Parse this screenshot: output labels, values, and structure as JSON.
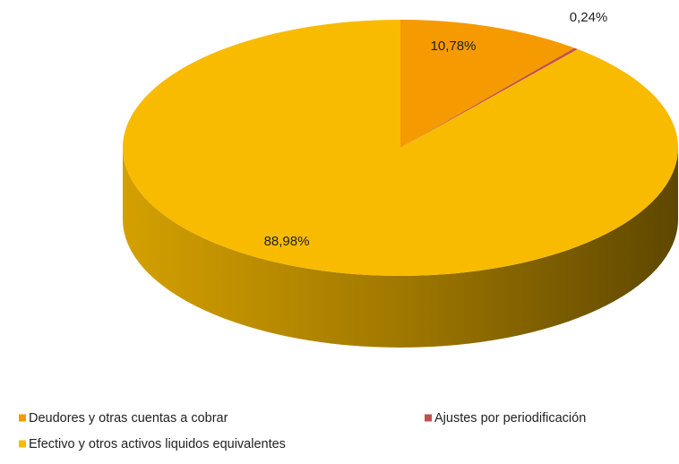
{
  "chart_data": {
    "type": "pie",
    "categories": [
      "Deudores y otras cuentas a cobrar",
      "Ajustes por periodificación",
      "Efectivo y otros activos liquidos equivalentes"
    ],
    "values": [
      10.78,
      0.24,
      88.98
    ],
    "value_labels": [
      "10,78%",
      "0,24%",
      "88,98%"
    ],
    "colors": [
      "#F59A00",
      "#C0504D",
      "#F8BB00"
    ]
  }
}
